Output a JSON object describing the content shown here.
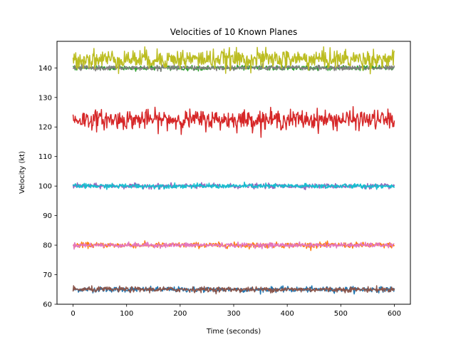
{
  "chart_data": {
    "type": "line",
    "title": "Velocities of 10 Known Planes",
    "xlabel": "Time (seconds)",
    "ylabel": "Velocity (kt)",
    "xlim": [
      -30,
      630
    ],
    "ylim": [
      60,
      149
    ],
    "xticks": [
      0,
      100,
      200,
      300,
      400,
      500,
      600
    ],
    "yticks": [
      60,
      70,
      80,
      90,
      100,
      110,
      120,
      130,
      140
    ],
    "grid": false,
    "legend": "none",
    "x_range": [
      0,
      600
    ],
    "series": [
      {
        "color": "#1f77b4",
        "mean": 65,
        "noise": 0.45
      },
      {
        "color": "#ff7f0e",
        "mean": 80,
        "noise": 0.45
      },
      {
        "color": "#2ca02c",
        "mean": 140,
        "noise": 0.4
      },
      {
        "color": "#d62728",
        "mean": 122.5,
        "noise": 1.6
      },
      {
        "color": "#9467bd",
        "mean": 100,
        "noise": 0.4
      },
      {
        "color": "#8c564b",
        "mean": 65,
        "noise": 0.45
      },
      {
        "color": "#e377c2",
        "mean": 80,
        "noise": 0.4
      },
      {
        "color": "#7f7f7f",
        "mean": 140,
        "noise": 0.4
      },
      {
        "color": "#bcbd22",
        "mean": 143,
        "noise": 1.6
      },
      {
        "color": "#17becf",
        "mean": 100,
        "noise": 0.4
      }
    ]
  }
}
